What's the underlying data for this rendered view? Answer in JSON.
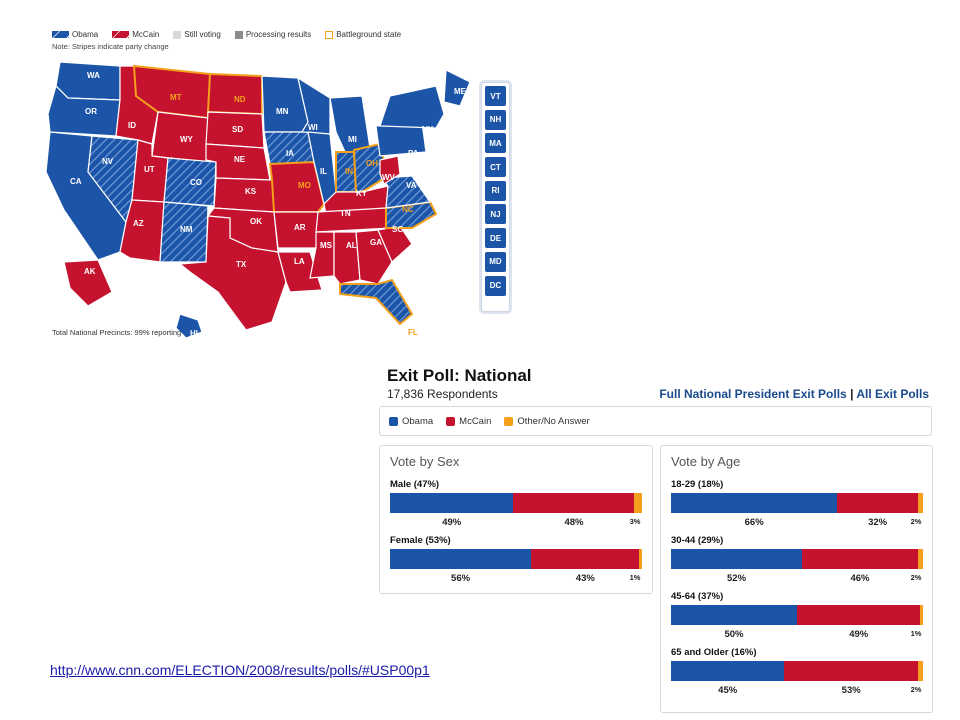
{
  "colors": {
    "obama": "#1c55a8",
    "mccain": "#c4122f",
    "other": "#f5a01a",
    "still_voting": "#d9d9d9",
    "processing": "#8c8c8c",
    "battleground": "#f5a01a"
  },
  "map": {
    "legend": [
      {
        "label": "Obama",
        "swatch": "obama"
      },
      {
        "label": "McCain",
        "swatch": "mccain"
      },
      {
        "label": "Still voting",
        "swatch": "still_voting"
      },
      {
        "label": "Processing results",
        "swatch": "processing"
      },
      {
        "label": "Battleground state",
        "swatch": "battleground"
      }
    ],
    "note": "Note: Stripes indicate party change",
    "states": [
      {
        "abbr": "WA",
        "winner": "obama"
      },
      {
        "abbr": "OR",
        "winner": "obama"
      },
      {
        "abbr": "CA",
        "winner": "obama"
      },
      {
        "abbr": "NV",
        "winner": "obama",
        "changed": true
      },
      {
        "abbr": "ID",
        "winner": "mccain"
      },
      {
        "abbr": "MT",
        "winner": "mccain",
        "battleground": true
      },
      {
        "abbr": "WY",
        "winner": "mccain"
      },
      {
        "abbr": "UT",
        "winner": "mccain"
      },
      {
        "abbr": "AZ",
        "winner": "mccain"
      },
      {
        "abbr": "CO",
        "winner": "obama",
        "changed": true
      },
      {
        "abbr": "NM",
        "winner": "obama",
        "changed": true
      },
      {
        "abbr": "ND",
        "winner": "mccain",
        "battleground": true
      },
      {
        "abbr": "SD",
        "winner": "mccain"
      },
      {
        "abbr": "NE",
        "winner": "mccain"
      },
      {
        "abbr": "KS",
        "winner": "mccain"
      },
      {
        "abbr": "OK",
        "winner": "mccain"
      },
      {
        "abbr": "TX",
        "winner": "mccain"
      },
      {
        "abbr": "MN",
        "winner": "obama"
      },
      {
        "abbr": "IA",
        "winner": "obama",
        "changed": true
      },
      {
        "abbr": "MO",
        "winner": "mccain",
        "battleground": true
      },
      {
        "abbr": "AR",
        "winner": "mccain"
      },
      {
        "abbr": "LA",
        "winner": "mccain"
      },
      {
        "abbr": "WI",
        "winner": "obama"
      },
      {
        "abbr": "IL",
        "winner": "obama"
      },
      {
        "abbr": "MI",
        "winner": "obama"
      },
      {
        "abbr": "IN",
        "winner": "obama",
        "changed": true,
        "battleground": true
      },
      {
        "abbr": "OH",
        "winner": "obama",
        "changed": true,
        "battleground": true
      },
      {
        "abbr": "KY",
        "winner": "mccain"
      },
      {
        "abbr": "TN",
        "winner": "mccain"
      },
      {
        "abbr": "MS",
        "winner": "mccain"
      },
      {
        "abbr": "AL",
        "winner": "mccain"
      },
      {
        "abbr": "GA",
        "winner": "mccain"
      },
      {
        "abbr": "FL",
        "winner": "obama",
        "changed": true,
        "battleground": true
      },
      {
        "abbr": "SC",
        "winner": "mccain"
      },
      {
        "abbr": "NC",
        "winner": "obama",
        "changed": true,
        "battleground": true
      },
      {
        "abbr": "VA",
        "winner": "obama",
        "changed": true
      },
      {
        "abbr": "WV",
        "winner": "mccain"
      },
      {
        "abbr": "PA",
        "winner": "obama"
      },
      {
        "abbr": "NY",
        "winner": "obama"
      },
      {
        "abbr": "ME",
        "winner": "obama"
      },
      {
        "abbr": "AK",
        "winner": "mccain"
      },
      {
        "abbr": "HI",
        "winner": "obama"
      }
    ],
    "northeast_boxes": [
      "VT",
      "NH",
      "MA",
      "CT",
      "RI",
      "NJ",
      "DE",
      "MD",
      "DC"
    ],
    "precincts": "Total National Precincts: 99% reporting"
  },
  "exit_poll": {
    "title": "Exit Poll: National",
    "respondents": "17,836 Respondents",
    "link_full": "Full National President Exit Polls",
    "link_separator": "|",
    "link_all": "All Exit Polls",
    "legend": [
      {
        "label": "Obama",
        "color": "obama"
      },
      {
        "label": "McCain",
        "color": "mccain"
      },
      {
        "label": "Other/No Answer",
        "color": "other"
      }
    ],
    "panels": [
      {
        "title": "Vote by Sex",
        "groups": [
          {
            "label": "Male (47%)",
            "obama": 49,
            "mccain": 48,
            "other": 3
          },
          {
            "label": "Female (53%)",
            "obama": 56,
            "mccain": 43,
            "other": 1
          }
        ]
      },
      {
        "title": "Vote by Age",
        "groups": [
          {
            "label": "18-29 (18%)",
            "obama": 66,
            "mccain": 32,
            "other": 2
          },
          {
            "label": "30-44 (29%)",
            "obama": 52,
            "mccain": 46,
            "other": 2
          },
          {
            "label": "45-64 (37%)",
            "obama": 50,
            "mccain": 49,
            "other": 1
          },
          {
            "label": "65 and Older (16%)",
            "obama": 45,
            "mccain": 53,
            "other": 2
          }
        ]
      }
    ]
  },
  "source_url": "http://www.cnn.com/ELECTION/2008/results/polls/#USP00p1"
}
